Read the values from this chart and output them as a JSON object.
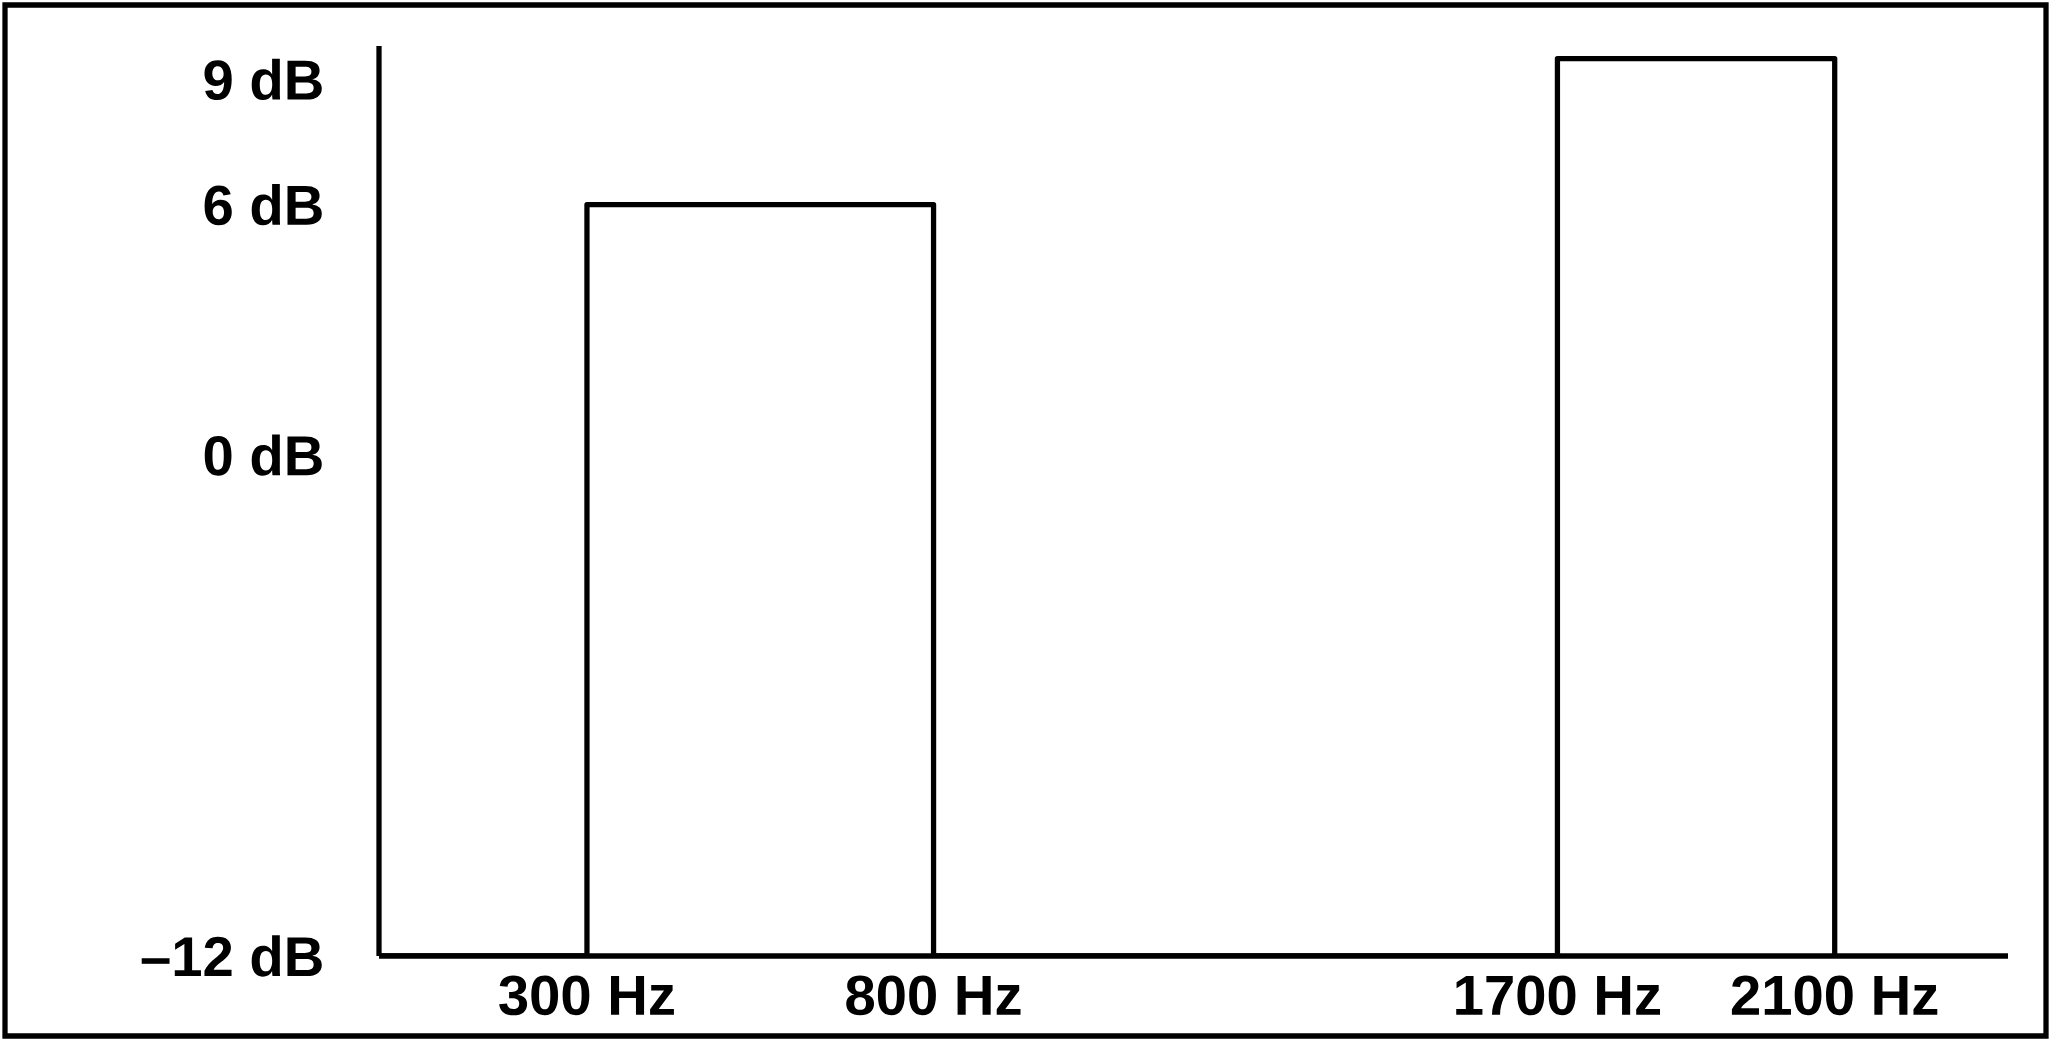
{
  "chart_data": {
    "type": "step",
    "x": [
      0,
      300,
      800,
      1700,
      2100
    ],
    "values": [
      -12,
      6,
      -12,
      9.5,
      -12
    ],
    "color": "#000000",
    "marker": "none",
    "xlim": [
      0,
      2350
    ],
    "ylim": [
      -12,
      9.8
    ],
    "xticks": [
      {
        "value": 300,
        "label": "300 Hz"
      },
      {
        "value": 800,
        "label": "800 Hz"
      },
      {
        "value": 1700,
        "label": "1700 Hz"
      },
      {
        "value": 2100,
        "label": "2100 Hz"
      }
    ],
    "yticks": [
      {
        "value": -12,
        "label": "–12  dB"
      },
      {
        "value": 0,
        "label": "0 dB"
      },
      {
        "value": 6,
        "label": "6 dB"
      },
      {
        "value": 9,
        "label": "9 dB"
      }
    ]
  }
}
